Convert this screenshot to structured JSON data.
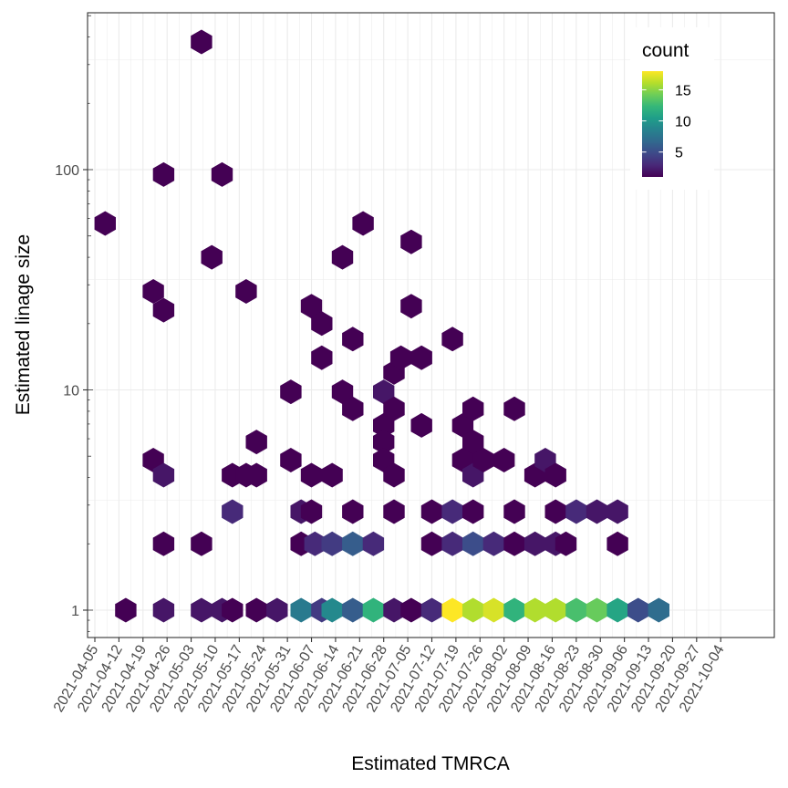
{
  "chart_data": {
    "type": "hexbin",
    "xlabel": "Estimated TMRCA",
    "ylabel": "Estimated linage size",
    "y_scale": "log10",
    "x_ticks": [
      "2021-04-05",
      "2021-04-12",
      "2021-04-19",
      "2021-04-26",
      "2021-05-03",
      "2021-05-10",
      "2021-05-17",
      "2021-05-24",
      "2021-05-31",
      "2021-06-07",
      "2021-06-14",
      "2021-06-21",
      "2021-06-28",
      "2021-07-05",
      "2021-07-12",
      "2021-07-19",
      "2021-07-26",
      "2021-08-02",
      "2021-08-09",
      "2021-08-16",
      "2021-08-23",
      "2021-08-30",
      "2021-09-06",
      "2021-09-13",
      "2021-09-20",
      "2021-09-27",
      "2021-10-04"
    ],
    "y_ticks": [
      1,
      10,
      100
    ],
    "grid": true,
    "legend": {
      "title": "count",
      "labels": [
        5,
        10,
        15
      ],
      "min": 1,
      "max": 18,
      "placement": "top-right"
    },
    "colorscale": [
      "#440154",
      "#482878",
      "#3e4989",
      "#31688e",
      "#26828e",
      "#1f9e89",
      "#35b779",
      "#6ece58",
      "#b5de2b",
      "#fde725"
    ],
    "points": [
      {
        "x": "2021-04-08",
        "y": 57,
        "count": 1
      },
      {
        "x": "2021-04-14",
        "y": 1,
        "count": 1
      },
      {
        "x": "2021-04-22",
        "y": 28,
        "count": 1
      },
      {
        "x": "2021-04-22",
        "y": 4.8,
        "count": 1
      },
      {
        "x": "2021-04-25",
        "y": 95,
        "count": 1
      },
      {
        "x": "2021-04-25",
        "y": 23,
        "count": 1
      },
      {
        "x": "2021-04-25",
        "y": 4.1,
        "count": 2
      },
      {
        "x": "2021-04-25",
        "y": 2,
        "count": 1
      },
      {
        "x": "2021-04-25",
        "y": 1,
        "count": 2
      },
      {
        "x": "2021-05-06",
        "y": 380,
        "count": 1
      },
      {
        "x": "2021-05-06",
        "y": 2,
        "count": 1
      },
      {
        "x": "2021-05-06",
        "y": 1,
        "count": 2
      },
      {
        "x": "2021-05-09",
        "y": 40,
        "count": 1
      },
      {
        "x": "2021-05-12",
        "y": 95,
        "count": 1
      },
      {
        "x": "2021-05-12",
        "y": 1,
        "count": 2
      },
      {
        "x": "2021-05-15",
        "y": 4.1,
        "count": 1
      },
      {
        "x": "2021-05-15",
        "y": 2.8,
        "count": 3
      },
      {
        "x": "2021-05-15",
        "y": 1,
        "count": 1
      },
      {
        "x": "2021-05-19",
        "y": 28,
        "count": 1
      },
      {
        "x": "2021-05-19",
        "y": 4.1,
        "count": 1
      },
      {
        "x": "2021-05-22",
        "y": 5.8,
        "count": 1
      },
      {
        "x": "2021-05-22",
        "y": 4.1,
        "count": 1
      },
      {
        "x": "2021-05-22",
        "y": 1,
        "count": 1
      },
      {
        "x": "2021-05-28",
        "y": 1,
        "count": 2
      },
      {
        "x": "2021-06-01",
        "y": 9.8,
        "count": 1
      },
      {
        "x": "2021-06-01",
        "y": 4.8,
        "count": 1
      },
      {
        "x": "2021-06-04",
        "y": 2.8,
        "count": 2
      },
      {
        "x": "2021-06-04",
        "y": 2,
        "count": 1
      },
      {
        "x": "2021-06-04",
        "y": 1,
        "count": 8
      },
      {
        "x": "2021-06-07",
        "y": 24,
        "count": 1
      },
      {
        "x": "2021-06-07",
        "y": 4.1,
        "count": 1
      },
      {
        "x": "2021-06-07",
        "y": 2.8,
        "count": 1
      },
      {
        "x": "2021-06-08",
        "y": 2,
        "count": 3
      },
      {
        "x": "2021-06-10",
        "y": 20,
        "count": 1
      },
      {
        "x": "2021-06-10",
        "y": 14,
        "count": 1
      },
      {
        "x": "2021-06-10",
        "y": 1,
        "count": 4
      },
      {
        "x": "2021-06-13",
        "y": 4.1,
        "count": 1
      },
      {
        "x": "2021-06-13",
        "y": 2,
        "count": 4
      },
      {
        "x": "2021-06-13",
        "y": 1,
        "count": 9
      },
      {
        "x": "2021-06-16",
        "y": 40,
        "count": 1
      },
      {
        "x": "2021-06-16",
        "y": 9.8,
        "count": 1
      },
      {
        "x": "2021-06-19",
        "y": 17,
        "count": 1
      },
      {
        "x": "2021-06-19",
        "y": 8.2,
        "count": 1
      },
      {
        "x": "2021-06-19",
        "y": 2.8,
        "count": 1
      },
      {
        "x": "2021-06-19",
        "y": 2,
        "count": 6
      },
      {
        "x": "2021-06-19",
        "y": 1,
        "count": 6
      },
      {
        "x": "2021-06-22",
        "y": 57,
        "count": 1
      },
      {
        "x": "2021-06-25",
        "y": 2,
        "count": 3
      },
      {
        "x": "2021-06-25",
        "y": 1,
        "count": 12
      },
      {
        "x": "2021-06-28",
        "y": 9.8,
        "count": 2
      },
      {
        "x": "2021-06-28",
        "y": 6.9,
        "count": 1
      },
      {
        "x": "2021-06-28",
        "y": 5.8,
        "count": 1
      },
      {
        "x": "2021-06-28",
        "y": 4.8,
        "count": 1
      },
      {
        "x": "2021-07-01",
        "y": 12,
        "count": 1
      },
      {
        "x": "2021-07-01",
        "y": 8.2,
        "count": 1
      },
      {
        "x": "2021-07-01",
        "y": 4.1,
        "count": 1
      },
      {
        "x": "2021-07-01",
        "y": 2.8,
        "count": 1
      },
      {
        "x": "2021-07-01",
        "y": 1,
        "count": 2
      },
      {
        "x": "2021-07-03",
        "y": 14,
        "count": 1
      },
      {
        "x": "2021-07-06",
        "y": 47,
        "count": 1
      },
      {
        "x": "2021-07-06",
        "y": 24,
        "count": 1
      },
      {
        "x": "2021-07-06",
        "y": 1,
        "count": 1
      },
      {
        "x": "2021-07-09",
        "y": 14,
        "count": 1
      },
      {
        "x": "2021-07-09",
        "y": 6.9,
        "count": 1
      },
      {
        "x": "2021-07-12",
        "y": 2.8,
        "count": 1
      },
      {
        "x": "2021-07-12",
        "y": 2,
        "count": 1
      },
      {
        "x": "2021-07-12",
        "y": 1,
        "count": 3
      },
      {
        "x": "2021-07-18",
        "y": 17,
        "count": 1
      },
      {
        "x": "2021-07-18",
        "y": 2.8,
        "count": 3
      },
      {
        "x": "2021-07-18",
        "y": 2,
        "count": 3
      },
      {
        "x": "2021-07-18",
        "y": 1,
        "count": 18
      },
      {
        "x": "2021-07-21",
        "y": 6.9,
        "count": 1
      },
      {
        "x": "2021-07-21",
        "y": 4.8,
        "count": 1
      },
      {
        "x": "2021-07-24",
        "y": 8.2,
        "count": 1
      },
      {
        "x": "2021-07-24",
        "y": 5.8,
        "count": 1
      },
      {
        "x": "2021-07-24",
        "y": 4.1,
        "count": 2
      },
      {
        "x": "2021-07-24",
        "y": 2.8,
        "count": 1
      },
      {
        "x": "2021-07-24",
        "y": 2,
        "count": 5
      },
      {
        "x": "2021-07-24",
        "y": 1,
        "count": 16
      },
      {
        "x": "2021-07-27",
        "y": 4.8,
        "count": 1
      },
      {
        "x": "2021-07-30",
        "y": 2,
        "count": 3
      },
      {
        "x": "2021-07-30",
        "y": 1,
        "count": 17
      },
      {
        "x": "2021-08-02",
        "y": 4.8,
        "count": 1
      },
      {
        "x": "2021-08-05",
        "y": 8.2,
        "count": 1
      },
      {
        "x": "2021-08-05",
        "y": 2.8,
        "count": 1
      },
      {
        "x": "2021-08-05",
        "y": 2,
        "count": 1
      },
      {
        "x": "2021-08-05",
        "y": 1,
        "count": 12
      },
      {
        "x": "2021-08-11",
        "y": 4.1,
        "count": 1
      },
      {
        "x": "2021-08-11",
        "y": 2,
        "count": 2
      },
      {
        "x": "2021-08-11",
        "y": 1,
        "count": 16
      },
      {
        "x": "2021-08-14",
        "y": 4.8,
        "count": 2
      },
      {
        "x": "2021-08-17",
        "y": 4.1,
        "count": 1
      },
      {
        "x": "2021-08-17",
        "y": 2.8,
        "count": 1
      },
      {
        "x": "2021-08-17",
        "y": 2,
        "count": 2
      },
      {
        "x": "2021-08-17",
        "y": 1,
        "count": 16
      },
      {
        "x": "2021-08-20",
        "y": 2,
        "count": 1
      },
      {
        "x": "2021-08-23",
        "y": 2.8,
        "count": 3
      },
      {
        "x": "2021-08-23",
        "y": 1,
        "count": 13
      },
      {
        "x": "2021-08-29",
        "y": 2.8,
        "count": 2
      },
      {
        "x": "2021-08-29",
        "y": 1,
        "count": 14
      },
      {
        "x": "2021-09-04",
        "y": 2.8,
        "count": 2
      },
      {
        "x": "2021-09-04",
        "y": 2,
        "count": 1
      },
      {
        "x": "2021-09-04",
        "y": 1,
        "count": 11
      },
      {
        "x": "2021-09-10",
        "y": 1,
        "count": 5
      },
      {
        "x": "2021-09-16",
        "y": 1,
        "count": 7
      }
    ]
  }
}
